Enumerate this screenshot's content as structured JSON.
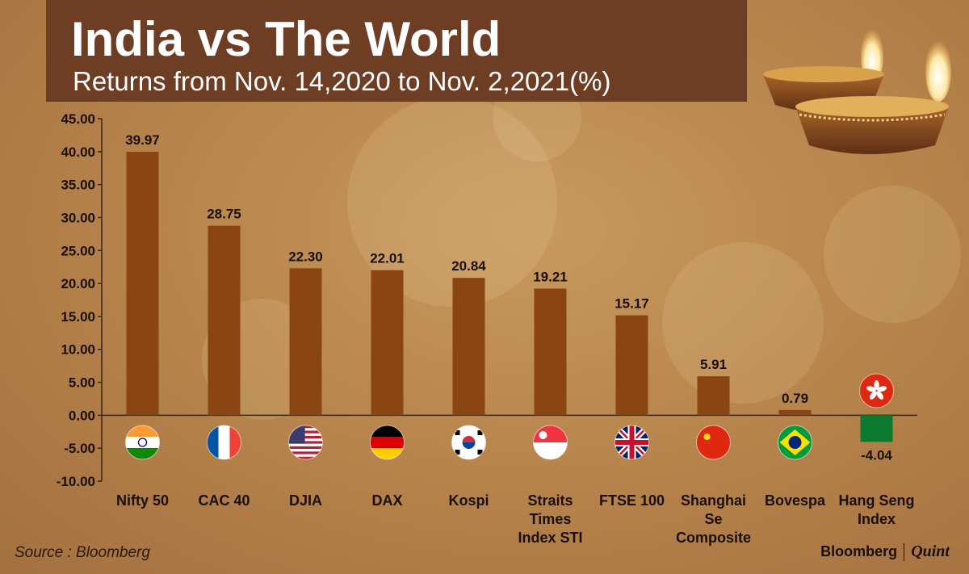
{
  "header": {
    "title": "India vs The World",
    "subtitle": "Returns from Nov. 14,2020 to Nov. 2,2021(%)"
  },
  "footer": {
    "source": "Source : Bloomberg",
    "brand_1": "Bloomberg",
    "brand_2": "Quint"
  },
  "colors": {
    "bar_positive": "#8a4513",
    "bar_negative": "#0c7a2e",
    "axis": "#3a2414",
    "banner": "#6d3d24"
  },
  "chart_data": {
    "type": "bar",
    "title": "India vs The World",
    "subtitle": "Returns from Nov. 14,2020 to Nov. 2,2021(%)",
    "categories": [
      "Nifty 50",
      "CAC 40",
      "DJIA",
      "DAX",
      "Kospi",
      "Straits Times Index STI",
      "FTSE 100",
      "Shanghai Se Composite",
      "Bovespa",
      "Hang Seng Index"
    ],
    "category_lines": [
      [
        "Nifty 50"
      ],
      [
        "CAC 40"
      ],
      [
        "DJIA"
      ],
      [
        "DAX"
      ],
      [
        "Kospi"
      ],
      [
        "Straits",
        "Times",
        "Index STI"
      ],
      [
        "FTSE 100"
      ],
      [
        "Shanghai",
        "Se",
        "Composite"
      ],
      [
        "Bovespa"
      ],
      [
        "Hang Seng",
        "Index"
      ]
    ],
    "values": [
      39.97,
      28.75,
      22.3,
      22.01,
      20.84,
      19.21,
      15.17,
      5.91,
      0.79,
      -4.04
    ],
    "value_labels": [
      "39.97",
      "28.75",
      "22.30",
      "22.01",
      "20.84",
      "19.21",
      "15.17",
      "5.91",
      "0.79",
      "-4.04"
    ],
    "flag_icons": [
      "india-flag-icon",
      "france-flag-icon",
      "usa-flag-icon",
      "germany-flag-icon",
      "south-korea-flag-icon",
      "singapore-flag-icon",
      "uk-flag-icon",
      "china-flag-icon",
      "brazil-flag-icon",
      "hong-kong-flag-icon"
    ],
    "yticks": [
      "-10.00",
      "-5.00",
      "0.00",
      "5.00",
      "10.00",
      "15.00",
      "20.00",
      "25.00",
      "30.00",
      "35.00",
      "40.00",
      "45.00"
    ],
    "ylim": [
      -10,
      45
    ],
    "xlabel": "",
    "ylabel": "",
    "grid": false,
    "legend": "none"
  }
}
